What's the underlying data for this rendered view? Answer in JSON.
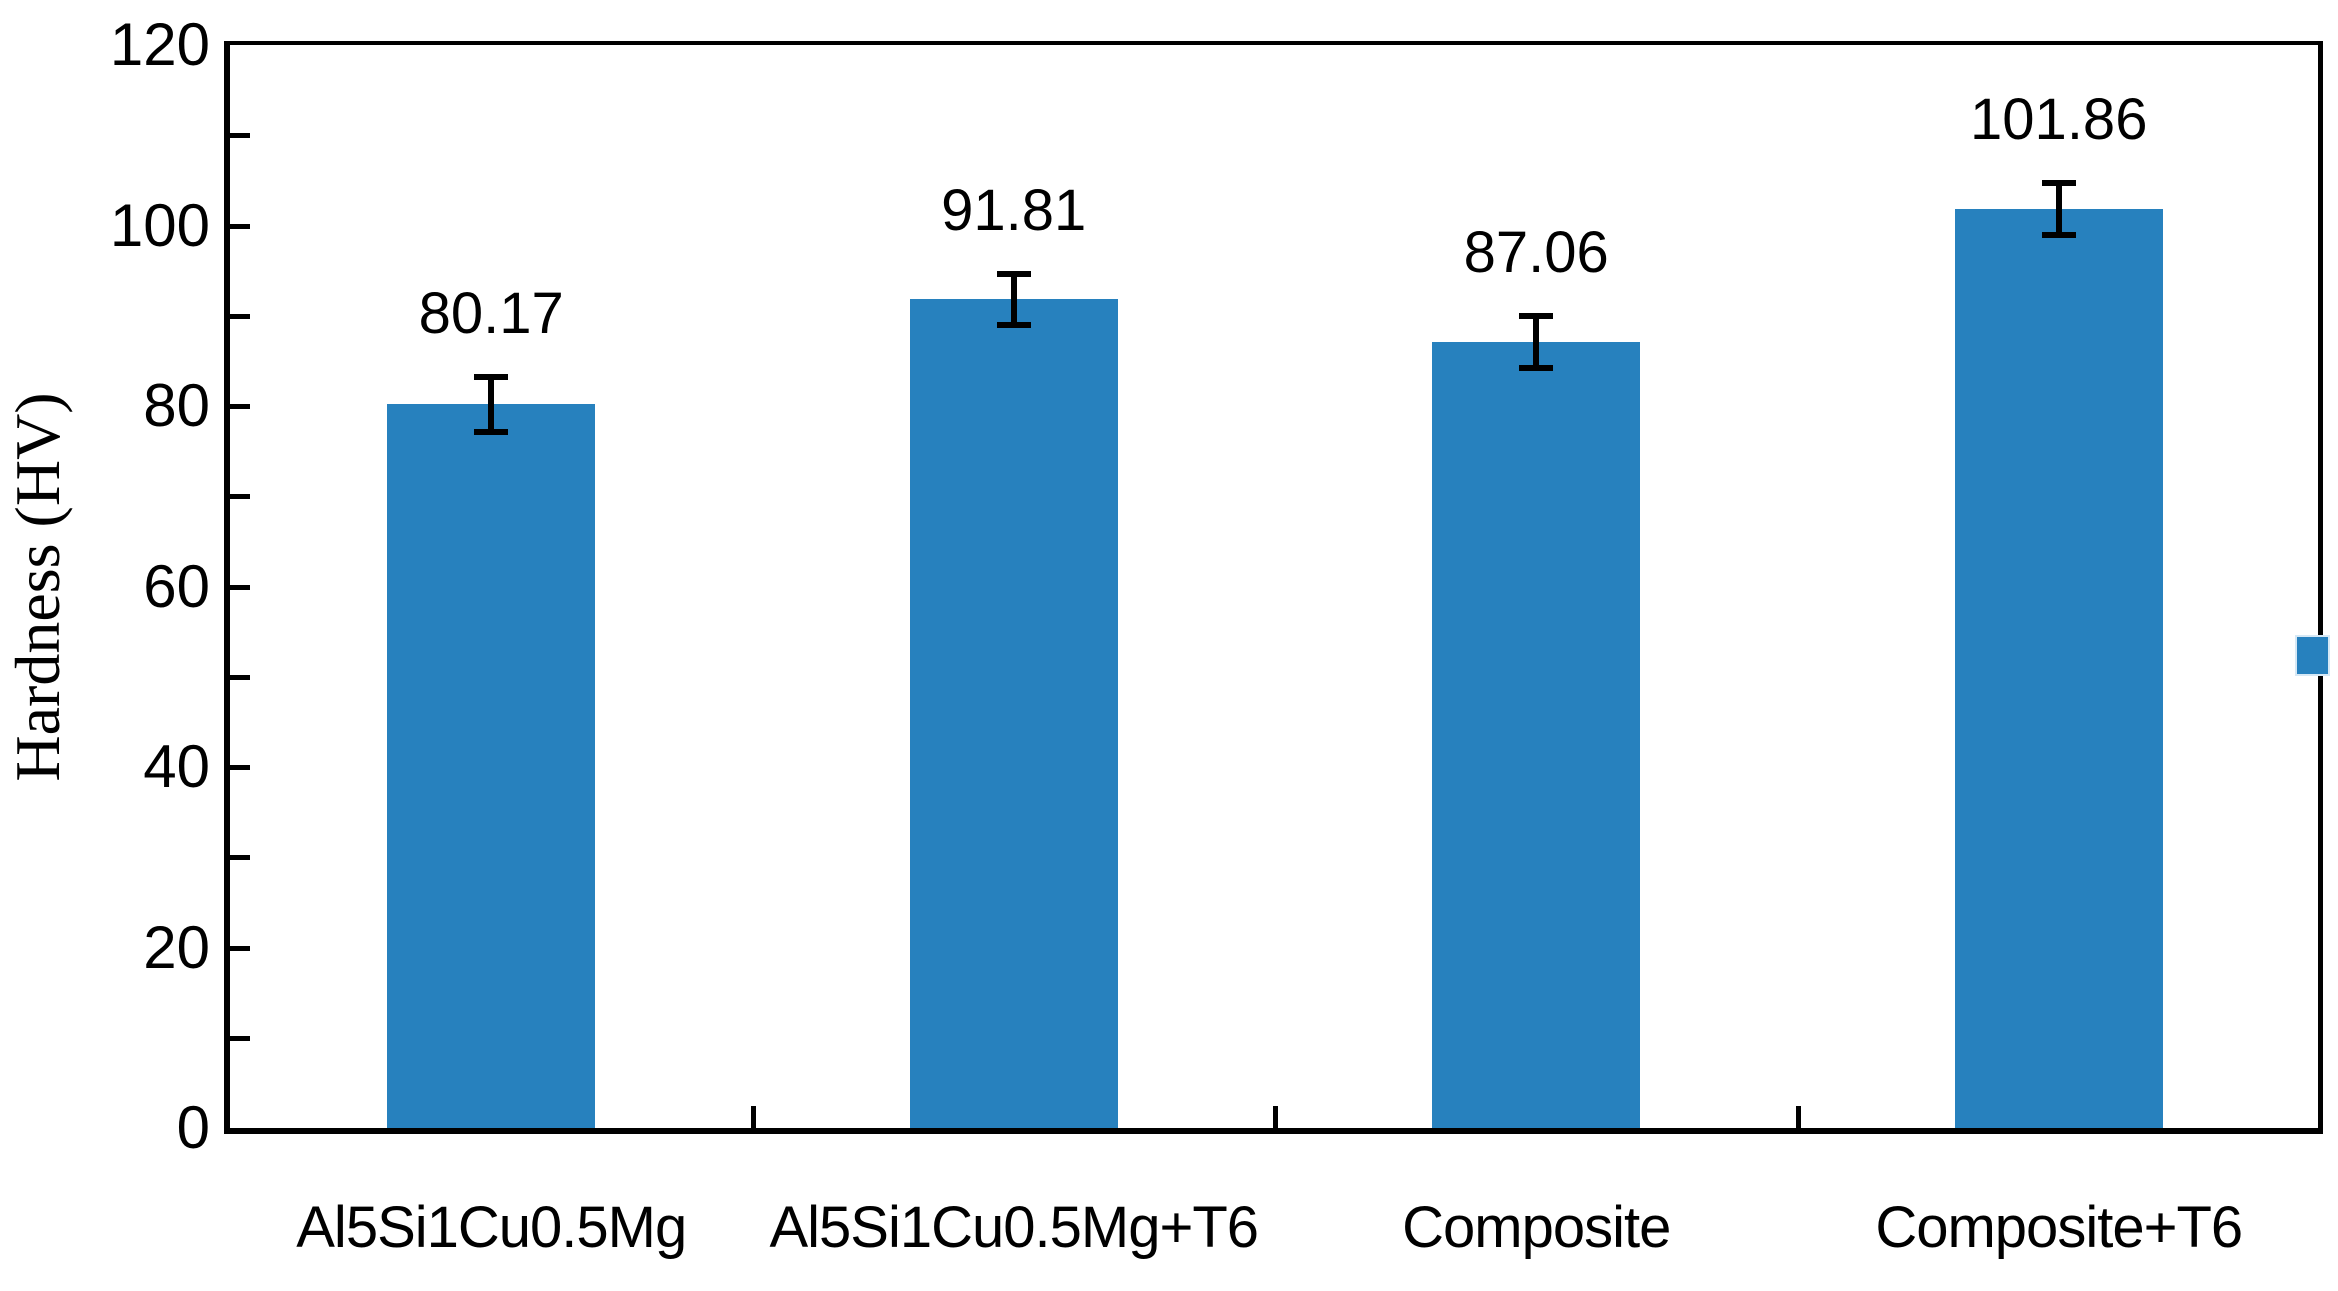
{
  "chart_data": {
    "type": "bar",
    "title": "",
    "xlabel": "",
    "ylabel": "Hardness (HV)",
    "categories": [
      "Al5Si1Cu0.5Mg",
      "Al5Si1Cu0.5Mg+T6",
      "Composite",
      "Composite+T6"
    ],
    "values": [
      80.17,
      91.81,
      87.06,
      101.86
    ],
    "data_labels": [
      "80.17",
      "91.81",
      "87.06",
      "101.86"
    ],
    "error_bars": [
      3.0,
      2.8,
      2.9,
      2.9
    ],
    "ylim": [
      0,
      120
    ],
    "y_major_tick_interval": 20,
    "y_minor_tick_interval": 10,
    "y_tick_labels": [
      "0",
      "20",
      "40",
      "60",
      "80",
      "100",
      "120"
    ],
    "grid": false,
    "legend_position": "right-clipped",
    "bar_color": "#2781BE",
    "legend_marker_color": "#2781BE",
    "legend_marker_edge_color": "#d6e8f5",
    "axis_color": "#000000",
    "text_color": "#000000"
  }
}
